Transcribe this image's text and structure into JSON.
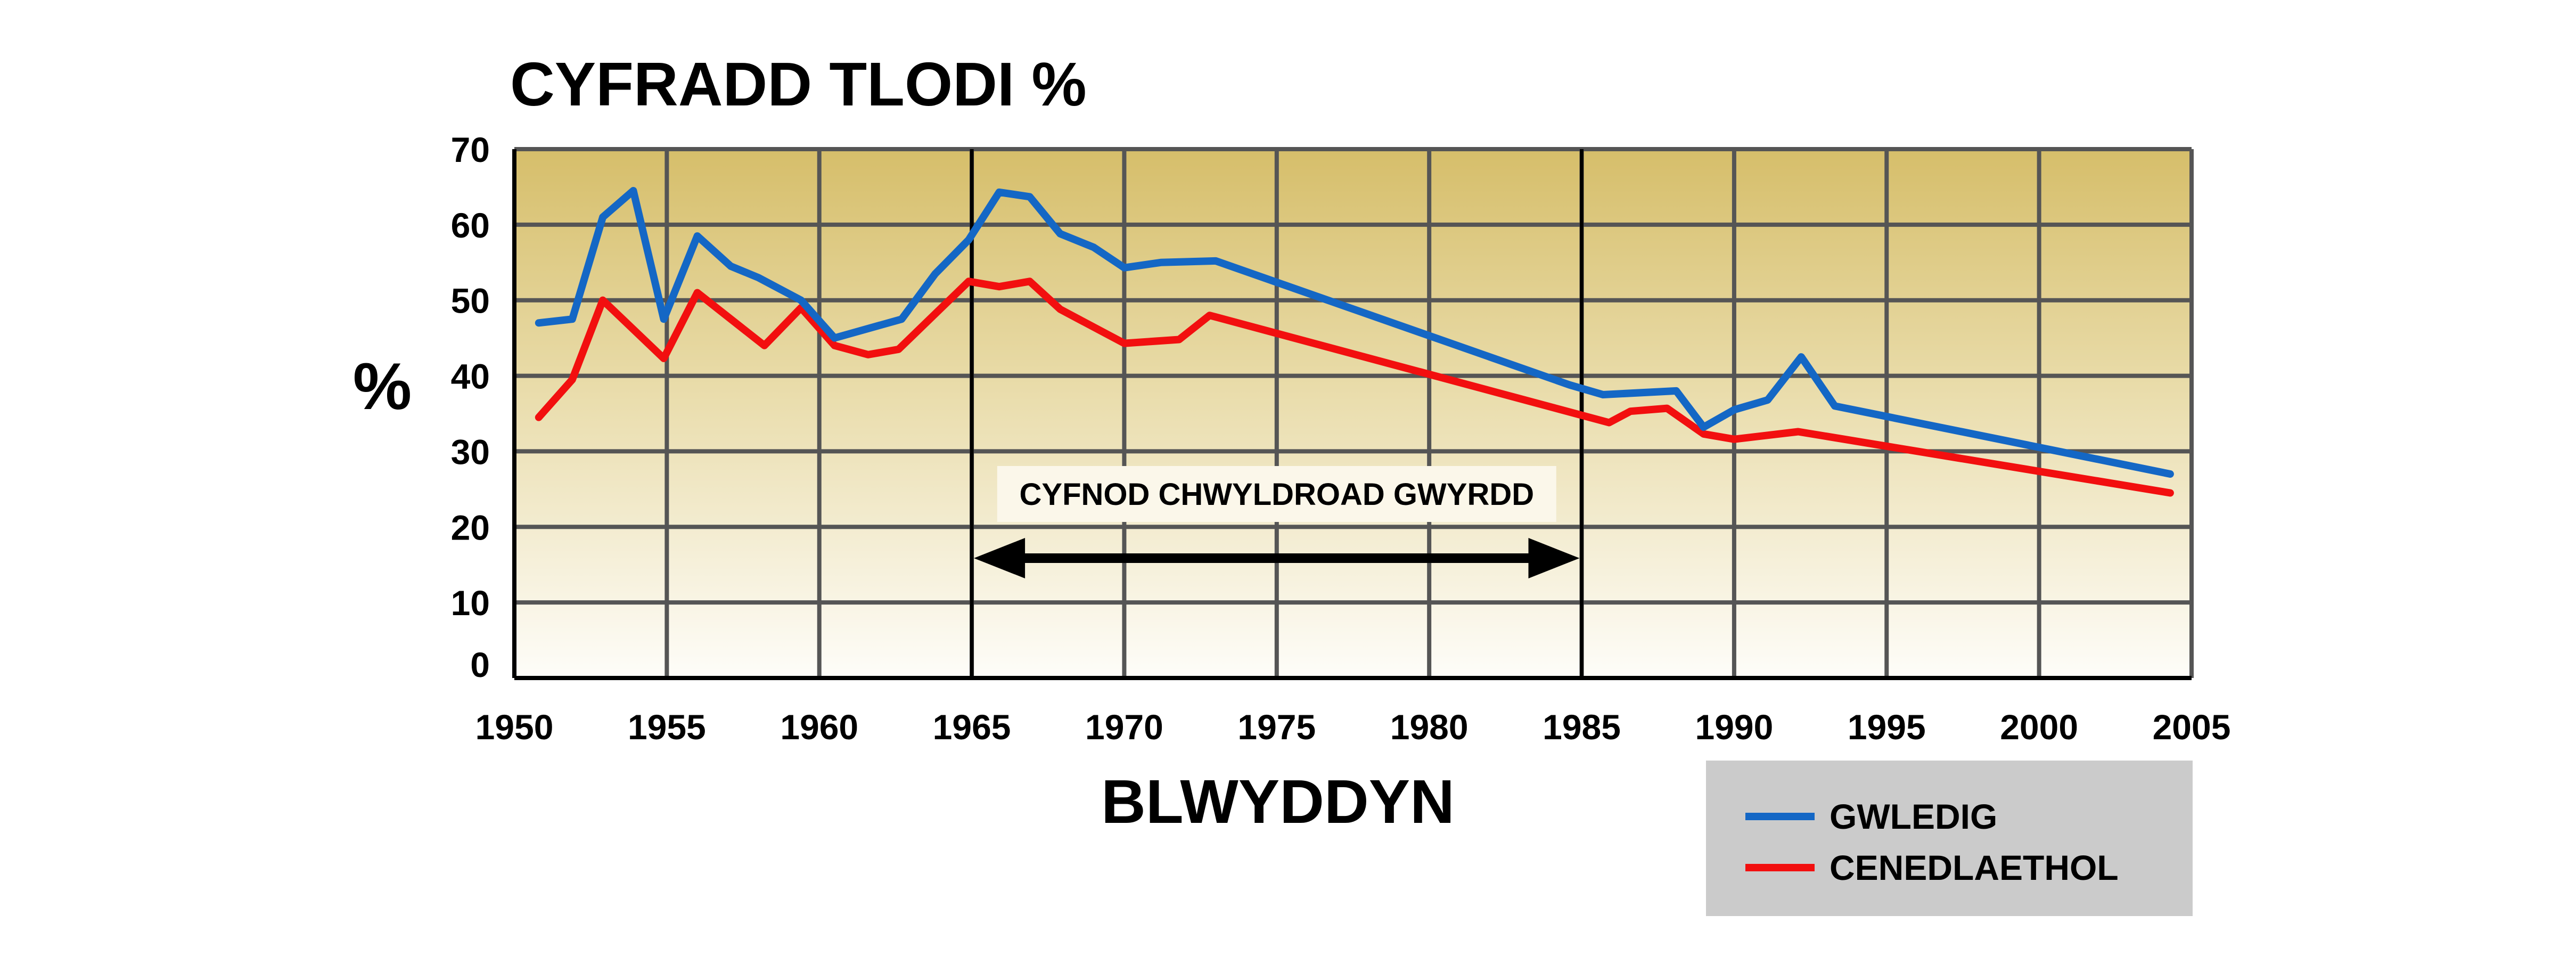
{
  "chart_data": {
    "type": "line",
    "title": "CYFRADD TLODI  %",
    "xlabel": "BLWYDDYN",
    "ylabel": "%",
    "xlim": [
      1950,
      2005
    ],
    "ylim": [
      0,
      70
    ],
    "x_ticks": [
      1950,
      1955,
      1960,
      1965,
      1970,
      1975,
      1980,
      1985,
      1990,
      1995,
      2000,
      2005
    ],
    "y_ticks": [
      0,
      10,
      20,
      30,
      40,
      50,
      60,
      70
    ],
    "grid": true,
    "legend_position": "bottom-right",
    "annotation": {
      "text": "CYFNOD CHWYLDROAD GWYRDD",
      "x_start": 1965,
      "x_end": 1985
    },
    "series": [
      {
        "name": "GWLEDIG",
        "color": "#1467c5",
        "points": [
          [
            1950.8,
            47
          ],
          [
            1951.9,
            47.5
          ],
          [
            1952.9,
            61
          ],
          [
            1953.9,
            64.5
          ],
          [
            1954.9,
            47.5
          ],
          [
            1956.0,
            58.5
          ],
          [
            1957.1,
            54.5
          ],
          [
            1958.0,
            53
          ],
          [
            1959.4,
            50
          ],
          [
            1960.5,
            45
          ],
          [
            1962.7,
            47.5
          ],
          [
            1963.8,
            53.5
          ],
          [
            1964.9,
            58
          ],
          [
            1965.9,
            64.3
          ],
          [
            1966.9,
            63.7
          ],
          [
            1967.9,
            58.8
          ],
          [
            1969.0,
            57
          ],
          [
            1970.0,
            54.3
          ],
          [
            1971.2,
            55
          ],
          [
            1973.0,
            55.2
          ],
          [
            1984.6,
            38.8
          ],
          [
            1985.7,
            37.5
          ],
          [
            1988.1,
            38
          ],
          [
            1989.0,
            33.2
          ],
          [
            1990.0,
            35.5
          ],
          [
            1991.1,
            36.8
          ],
          [
            1992.2,
            42.5
          ],
          [
            1993.3,
            36
          ],
          [
            2000.4,
            30.2
          ],
          [
            2004.3,
            27
          ]
        ]
      },
      {
        "name": "CENEDLAETHOL",
        "color": "#f20f0f",
        "points": [
          [
            1950.8,
            34.5
          ],
          [
            1951.9,
            39.5
          ],
          [
            1952.9,
            50
          ],
          [
            1954.9,
            42.3
          ],
          [
            1956.0,
            51
          ],
          [
            1958.2,
            44
          ],
          [
            1959.4,
            49
          ],
          [
            1960.5,
            44
          ],
          [
            1961.6,
            42.8
          ],
          [
            1962.6,
            43.5
          ],
          [
            1964.9,
            52.5
          ],
          [
            1965.9,
            51.8
          ],
          [
            1966.9,
            52.5
          ],
          [
            1967.9,
            48.8
          ],
          [
            1970.0,
            44.3
          ],
          [
            1971.8,
            44.8
          ],
          [
            1972.8,
            48
          ],
          [
            1985.9,
            33.8
          ],
          [
            1986.6,
            35.3
          ],
          [
            1987.8,
            35.7
          ],
          [
            1989.0,
            32.3
          ],
          [
            1990.0,
            31.6
          ],
          [
            1992.1,
            32.6
          ],
          [
            2004.3,
            24.5
          ]
        ]
      }
    ]
  }
}
